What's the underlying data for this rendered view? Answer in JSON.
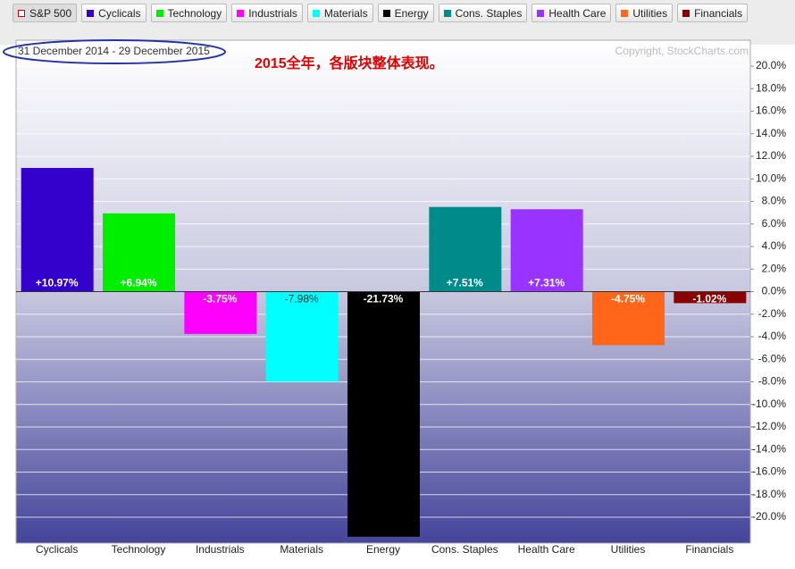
{
  "chart_data": {
    "type": "bar",
    "benchmark": "S&P 500",
    "date_range": "31 December 2014 - 29 December 2015",
    "annotation": "2015全年，各版块整体表现。",
    "copyright": "Copyright, StockCharts.com",
    "categories": [
      "Cyclicals",
      "Technology",
      "Industrials",
      "Materials",
      "Energy",
      "Cons. Staples",
      "Health Care",
      "Utilities",
      "Financials"
    ],
    "values": [
      10.97,
      6.94,
      -3.75,
      -7.98,
      -21.73,
      7.51,
      7.31,
      -4.75,
      -1.02
    ],
    "value_labels": [
      "+10.97%",
      "+6.94%",
      "-3.75%",
      "-7.98%",
      "-21.73%",
      "+7.51%",
      "+7.31%",
      "-4.75%",
      "-1.02%"
    ],
    "colors": [
      "#3300cc",
      "#00ee00",
      "#ff00ff",
      "#00ffff",
      "#000000",
      "#008b8b",
      "#9933ff",
      "#ff6619",
      "#8b0000"
    ],
    "ylim": [
      -22.3,
      22.3
    ],
    "yticks": [
      {
        "value": -20,
        "label": "-20.0%"
      },
      {
        "value": -18,
        "label": "-18.0%"
      },
      {
        "value": -16,
        "label": "-16.0%"
      },
      {
        "value": -14,
        "label": "-14.0%"
      },
      {
        "value": -12,
        "label": "-12.0%"
      },
      {
        "value": -10,
        "label": "-10.0%"
      },
      {
        "value": -8,
        "label": "-8.0%"
      },
      {
        "value": -6,
        "label": "-6.0%"
      },
      {
        "value": -4,
        "label": "-4.0%"
      },
      {
        "value": -2,
        "label": "-2.0%"
      },
      {
        "value": 0,
        "label": "0.0%"
      },
      {
        "value": 2,
        "label": "2.0%"
      },
      {
        "value": 4,
        "label": "4.0%"
      },
      {
        "value": 6,
        "label": "6.0%"
      },
      {
        "value": 8,
        "label": "8.0%"
      },
      {
        "value": 10,
        "label": "10.0%"
      },
      {
        "value": 12,
        "label": "12.0%"
      },
      {
        "value": 14,
        "label": "14.0%"
      },
      {
        "value": 16,
        "label": "16.0%"
      },
      {
        "value": 18,
        "label": "18.0%"
      },
      {
        "value": 20,
        "label": "20.0%"
      }
    ],
    "grid": true
  }
}
